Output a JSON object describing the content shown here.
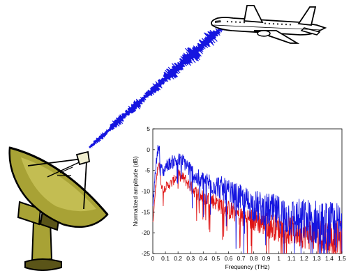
{
  "illustration": {
    "dish_icon": "satellite-dish-icon",
    "airplane_icon": "airplane-icon",
    "colors": {
      "signal": "#1515e0",
      "dish_fill": "#a8a235",
      "dish_dark": "#5a5418",
      "plane_fill": "#ffffff",
      "plane_window": "#333333"
    }
  },
  "chart_data": {
    "type": "line",
    "title": "",
    "xlabel": "Frequency (THz)",
    "ylabel": "Normalized amplitude (dB)",
    "xlim": [
      0,
      1.5
    ],
    "ylim": [
      -25,
      5
    ],
    "x_ticks": [
      "0",
      "0.1",
      "0.2",
      "0.3",
      "0.4",
      "0.5",
      "0.6",
      "0.7",
      "0.8",
      "0.9",
      "1",
      "1.1",
      "1.2",
      "1.3",
      "1.4",
      "1.5"
    ],
    "y_ticks": [
      "5",
      "0",
      "-5",
      "-10",
      "-15",
      "-20",
      "-25"
    ],
    "grid": false,
    "legend": "none",
    "series": [
      {
        "color": "#1515e0",
        "x": [
          0,
          0.02,
          0.04,
          0.05,
          0.06,
          0.08,
          0.1,
          0.15,
          0.2,
          0.25,
          0.3,
          0.35,
          0.4,
          0.5,
          0.6,
          0.7,
          0.8,
          0.9,
          1.0,
          1.1,
          1.2,
          1.3,
          1.4,
          1.5
        ],
        "values": [
          -14,
          -5,
          0,
          1,
          -3,
          -6,
          -4,
          -3,
          -2.5,
          -3,
          -5,
          -7,
          -7.5,
          -8.5,
          -10.5,
          -12,
          -13.5,
          -14.5,
          -15.5,
          -16.5,
          -17,
          -17.5,
          -18.5,
          -19
        ]
      },
      {
        "color": "#e01515",
        "x": [
          0,
          0.02,
          0.04,
          0.05,
          0.06,
          0.08,
          0.1,
          0.15,
          0.2,
          0.25,
          0.3,
          0.35,
          0.4,
          0.5,
          0.6,
          0.7,
          0.8,
          0.9,
          1.0,
          1.1,
          1.2,
          1.3,
          1.4,
          1.5
        ],
        "values": [
          -18,
          -10,
          -4,
          -3,
          -7,
          -10,
          -9,
          -8,
          -6,
          -7,
          -9,
          -10.5,
          -11.5,
          -12.5,
          -14.5,
          -16,
          -17,
          -18,
          -19,
          -19.5,
          -20,
          -20.5,
          -21,
          -21.5
        ]
      }
    ]
  }
}
